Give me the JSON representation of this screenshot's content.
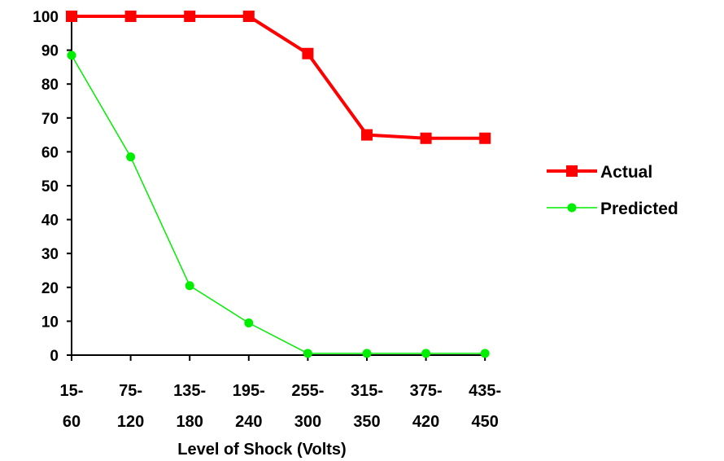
{
  "chart_data": {
    "type": "line",
    "title": "",
    "xlabel": "Level of Shock (Volts)",
    "ylabel": "",
    "ylim": [
      0,
      100
    ],
    "yticks": [
      0,
      10,
      20,
      30,
      40,
      50,
      60,
      70,
      80,
      90,
      100
    ],
    "grid": false,
    "legend_position": "right",
    "categories": [
      [
        "15-",
        "60"
      ],
      [
        "75-",
        "120"
      ],
      [
        "135-",
        "180"
      ],
      [
        "195-",
        "240"
      ],
      [
        "255-",
        "300"
      ],
      [
        "315-",
        "350"
      ],
      [
        "375-",
        "420"
      ],
      [
        "435-",
        "450"
      ]
    ],
    "series": [
      {
        "name": "Actual",
        "color": "#ff0000",
        "marker": "square",
        "values": [
          100,
          100,
          100,
          100,
          89,
          65,
          64,
          64
        ]
      },
      {
        "name": "Predicted",
        "color": "#00ee00",
        "marker": "circle",
        "values": [
          88.5,
          58.5,
          20.5,
          9.5,
          0.5,
          0.5,
          0.5,
          0.5
        ]
      }
    ]
  }
}
